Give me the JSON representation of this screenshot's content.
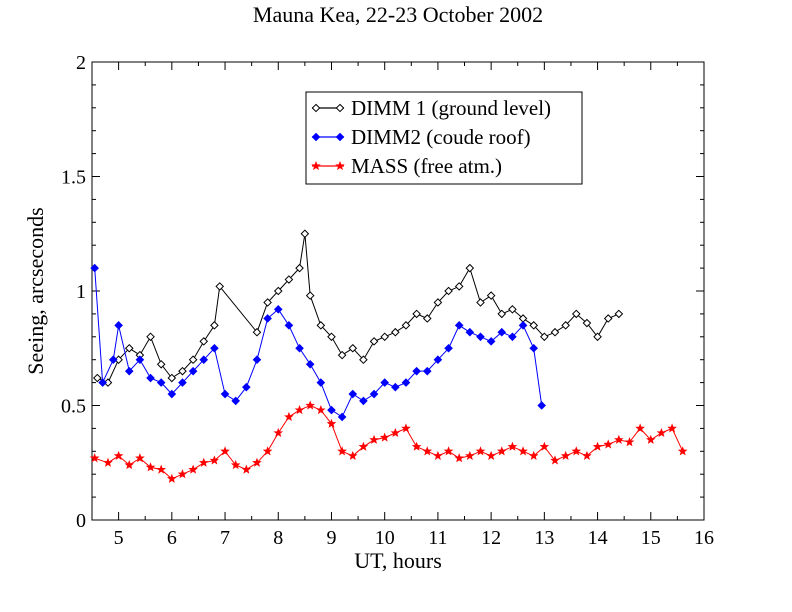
{
  "chart_data": {
    "type": "line",
    "title": "Mauna Kea, 22-23  October 2002",
    "xlabel": "UT, hours",
    "ylabel": "Seeing, arcseconds",
    "xlim": [
      4.5,
      16
    ],
    "ylim": [
      0,
      2
    ],
    "xticks": [
      5,
      6,
      7,
      8,
      9,
      10,
      11,
      12,
      13,
      14,
      15,
      16
    ],
    "yticks": [
      0,
      0.5,
      1,
      1.5,
      2
    ],
    "ytick_labels": [
      "0",
      "0.5",
      "1",
      "1.5",
      "2"
    ],
    "grid": false,
    "legend_position": "top-center",
    "series": [
      {
        "name": "DIMM 1 (ground level)",
        "color": "#000000",
        "marker": "open-diamond",
        "x": [
          4.6,
          4.8,
          5.0,
          5.2,
          5.4,
          5.6,
          5.8,
          6.0,
          6.2,
          6.4,
          6.6,
          6.8,
          6.9,
          7.6,
          7.8,
          8.0,
          8.2,
          8.4,
          8.5,
          8.6,
          8.8,
          9.0,
          9.2,
          9.4,
          9.6,
          9.8,
          10.0,
          10.2,
          10.4,
          10.6,
          10.8,
          11.0,
          11.2,
          11.4,
          11.6,
          11.8,
          12.0,
          12.2,
          12.4,
          12.6,
          12.8,
          13.0,
          13.2,
          13.4,
          13.6,
          13.8,
          14.0,
          14.2,
          14.4
        ],
        "y": [
          0.62,
          0.6,
          0.7,
          0.75,
          0.72,
          0.8,
          0.68,
          0.62,
          0.65,
          0.7,
          0.78,
          0.85,
          1.02,
          0.82,
          0.95,
          1.0,
          1.05,
          1.1,
          1.25,
          0.98,
          0.85,
          0.8,
          0.72,
          0.75,
          0.7,
          0.78,
          0.8,
          0.82,
          0.85,
          0.9,
          0.88,
          0.95,
          1.0,
          1.02,
          1.1,
          0.95,
          0.98,
          0.9,
          0.92,
          0.88,
          0.85,
          0.8,
          0.82,
          0.85,
          0.9,
          0.86,
          0.8,
          0.88,
          0.9
        ]
      },
      {
        "name": "DIMM2 (coude roof)",
        "color": "#0000ff",
        "marker": "filled-diamond",
        "x": [
          4.55,
          4.7,
          4.9,
          5.0,
          5.2,
          5.4,
          5.6,
          5.8,
          6.0,
          6.2,
          6.4,
          6.6,
          6.8,
          7.0,
          7.2,
          7.4,
          7.6,
          7.8,
          8.0,
          8.2,
          8.4,
          8.6,
          8.8,
          9.0,
          9.2,
          9.4,
          9.6,
          9.8,
          10.0,
          10.2,
          10.4,
          10.6,
          10.8,
          11.0,
          11.2,
          11.4,
          11.6,
          11.8,
          12.0,
          12.2,
          12.4,
          12.6,
          12.8,
          12.95
        ],
        "y": [
          1.1,
          0.6,
          0.7,
          0.85,
          0.65,
          0.7,
          0.62,
          0.6,
          0.55,
          0.6,
          0.65,
          0.7,
          0.75,
          0.55,
          0.52,
          0.58,
          0.7,
          0.88,
          0.92,
          0.85,
          0.75,
          0.68,
          0.6,
          0.48,
          0.45,
          0.55,
          0.52,
          0.55,
          0.6,
          0.58,
          0.6,
          0.65,
          0.65,
          0.7,
          0.75,
          0.85,
          0.82,
          0.8,
          0.78,
          0.82,
          0.8,
          0.85,
          0.75,
          0.5
        ]
      },
      {
        "name": "MASS (free atm.)",
        "color": "#ff0000",
        "marker": "filled-star",
        "x": [
          4.55,
          4.8,
          5.0,
          5.2,
          5.4,
          5.6,
          5.8,
          6.0,
          6.2,
          6.4,
          6.6,
          6.8,
          7.0,
          7.2,
          7.4,
          7.6,
          7.8,
          8.0,
          8.2,
          8.4,
          8.6,
          8.8,
          9.0,
          9.2,
          9.4,
          9.6,
          9.8,
          10.0,
          10.2,
          10.4,
          10.6,
          10.8,
          11.0,
          11.2,
          11.4,
          11.6,
          11.8,
          12.0,
          12.2,
          12.4,
          12.6,
          12.8,
          13.0,
          13.2,
          13.4,
          13.6,
          13.8,
          14.0,
          14.2,
          14.4,
          14.6,
          14.8,
          15.0,
          15.2,
          15.4,
          15.6
        ],
        "y": [
          0.27,
          0.25,
          0.28,
          0.24,
          0.27,
          0.23,
          0.22,
          0.18,
          0.2,
          0.22,
          0.25,
          0.26,
          0.3,
          0.24,
          0.22,
          0.25,
          0.3,
          0.38,
          0.45,
          0.48,
          0.5,
          0.48,
          0.42,
          0.3,
          0.28,
          0.32,
          0.35,
          0.36,
          0.38,
          0.4,
          0.32,
          0.3,
          0.28,
          0.3,
          0.27,
          0.28,
          0.3,
          0.28,
          0.3,
          0.32,
          0.3,
          0.28,
          0.32,
          0.26,
          0.28,
          0.3,
          0.28,
          0.32,
          0.33,
          0.35,
          0.34,
          0.4,
          0.35,
          0.38,
          0.4,
          0.3
        ]
      }
    ]
  }
}
